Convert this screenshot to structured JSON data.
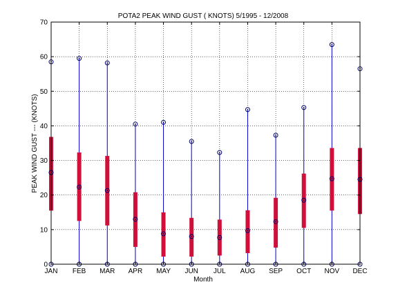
{
  "chart_data": {
    "type": "boxplot",
    "title": "POTA2  PEAK WIND GUST ( KNOTS) 5/1995 - 12/2008",
    "xlabel": "Month",
    "ylabel": "PEAK WIND GUST --- (KNOTS)",
    "ylim": [
      0,
      70
    ],
    "yticks": [
      0,
      10,
      20,
      30,
      40,
      50,
      60,
      70
    ],
    "grid": true,
    "categories": [
      "JAN",
      "FEB",
      "MAR",
      "APR",
      "MAY",
      "JUN",
      "JUL",
      "AUG",
      "SEP",
      "OCT",
      "NOV",
      "DEC"
    ],
    "min": [
      0,
      0,
      0,
      0,
      0,
      0,
      0,
      0,
      0,
      0,
      0,
      0
    ],
    "q1": [
      15.5,
      12.5,
      11.2,
      5.0,
      2.2,
      2.2,
      2.5,
      3.2,
      4.8,
      10.5,
      15.5,
      14.5
    ],
    "median": [
      26.5,
      22.3,
      21.3,
      13.0,
      8.8,
      8.0,
      7.7,
      9.7,
      12.3,
      18.5,
      24.7,
      24.5
    ],
    "q3": [
      36.8,
      32.3,
      31.3,
      20.8,
      15.0,
      13.4,
      12.9,
      15.6,
      19.2,
      26.2,
      33.6,
      33.6
    ],
    "max": [
      58.5,
      59.5,
      58.2,
      40.5,
      41.0,
      35.5,
      32.3,
      44.7,
      37.3,
      45.3,
      63.5,
      56.5
    ],
    "colors": {
      "whisker": "#0000cc",
      "box": "#d0103a",
      "marker": "#000066",
      "grid": "#000000"
    }
  }
}
